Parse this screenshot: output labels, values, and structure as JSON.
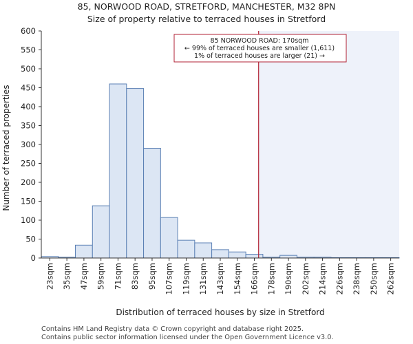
{
  "chart_data": {
    "type": "bar",
    "title": "85, NORWOOD ROAD, STRETFORD, MANCHESTER, M32 8PN",
    "subtitle": "Size of property relative to terraced houses in Stretford",
    "xlabel": "Distribution of terraced houses by size in Stretford",
    "ylabel": "Number of terraced properties",
    "ylim": [
      0,
      600
    ],
    "yticks": [
      0,
      50,
      100,
      150,
      200,
      250,
      300,
      350,
      400,
      450,
      500,
      550,
      600
    ],
    "categories": [
      "23sqm",
      "35sqm",
      "47sqm",
      "59sqm",
      "71sqm",
      "83sqm",
      "95sqm",
      "107sqm",
      "119sqm",
      "131sqm",
      "143sqm",
      "154sqm",
      "166sqm",
      "178sqm",
      "190sqm",
      "202sqm",
      "214sqm",
      "226sqm",
      "238sqm",
      "250sqm",
      "262sqm"
    ],
    "values": [
      4,
      2,
      34,
      138,
      460,
      448,
      290,
      107,
      47,
      40,
      22,
      16,
      10,
      2,
      7,
      2,
      2,
      1,
      1,
      1,
      1
    ],
    "grid": false,
    "colors": {
      "bar_fill": "#dce6f4",
      "bar_stroke": "#5b80b4",
      "marker": "#b22234",
      "shade": "#eef2fa"
    },
    "marker": {
      "value": 170,
      "label": "85 NORWOOD ROAD: 170sqm"
    },
    "annotation": {
      "line1": "85 NORWOOD ROAD: 170sqm",
      "line2": "← 99% of terraced houses are smaller (1,611)",
      "line3": "1% of terraced houses are larger (21) →"
    }
  },
  "footer": {
    "line1": "Contains HM Land Registry data © Crown copyright and database right 2025.",
    "line2": "Contains public sector information licensed under the Open Government Licence v3.0."
  }
}
